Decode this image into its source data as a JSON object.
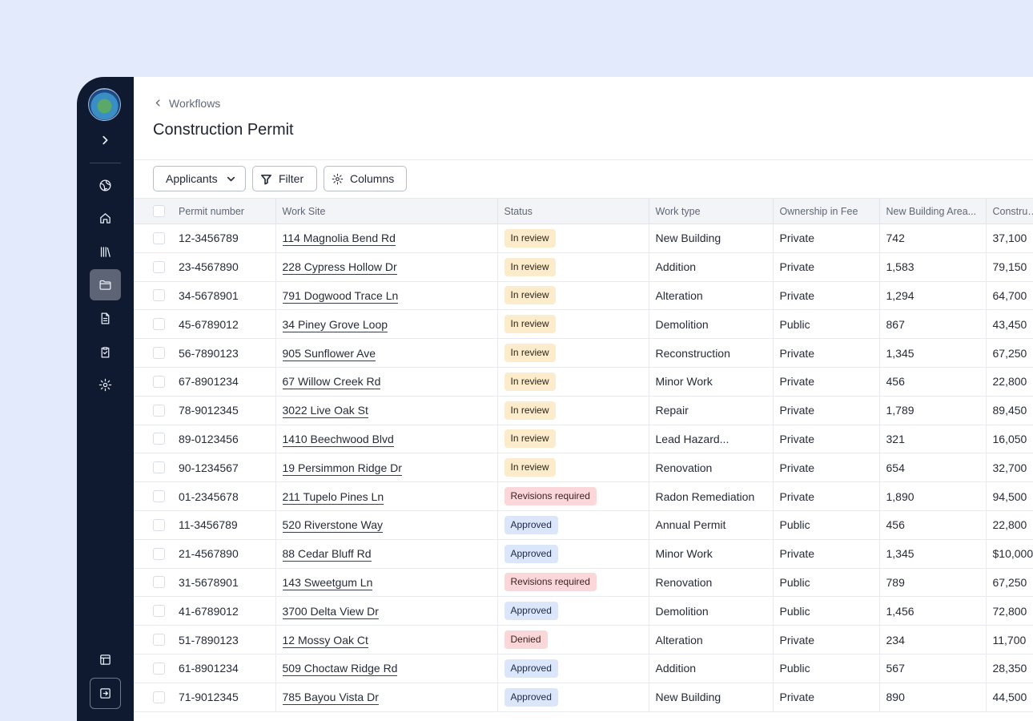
{
  "app": {
    "breadcrumb": "Workflows",
    "title": "Construction Permit"
  },
  "sidebar": {
    "icons": [
      "expand-icon",
      "globe-icon",
      "home-icon",
      "library-icon",
      "folder-icon",
      "document-icon",
      "clipboard-check-icon",
      "gear-icon",
      "layout-icon",
      "exit-icon"
    ],
    "active": "folder-icon"
  },
  "toolbar": {
    "applicants_label": "Applicants",
    "filter_label": "Filter",
    "columns_label": "Columns"
  },
  "table": {
    "headers": [
      "Permit number",
      "Work Site",
      "Status",
      "Work type",
      "Ownership in Fee",
      "New Building Area...",
      "Construction"
    ],
    "rows": [
      {
        "permit": "12-3456789",
        "site": "114 Magnolia Bend Rd",
        "status": "In review",
        "status_type": "review",
        "work": "New Building",
        "own": "Private",
        "area": "742",
        "cost": "37,100"
      },
      {
        "permit": "23-4567890",
        "site": "228 Cypress Hollow Dr",
        "status": "In review",
        "status_type": "review",
        "work": "Addition",
        "own": "Private",
        "area": "1,583",
        "cost": "79,150"
      },
      {
        "permit": "34-5678901",
        "site": "791 Dogwood Trace Ln",
        "status": "In review",
        "status_type": "review",
        "work": "Alteration",
        "own": "Private",
        "area": "1,294",
        "cost": "64,700"
      },
      {
        "permit": "45-6789012",
        "site": "34 Piney Grove Loop",
        "status": "In review",
        "status_type": "review",
        "work": "Demolition",
        "own": "Public",
        "area": "867",
        "cost": "43,450"
      },
      {
        "permit": "56-7890123",
        "site": "905 Sunflower Ave",
        "status": "In review",
        "status_type": "review",
        "work": "Reconstruction",
        "own": "Private",
        "area": "1,345",
        "cost": "67,250"
      },
      {
        "permit": "67-8901234",
        "site": "67 Willow Creek Rd",
        "status": "In review",
        "status_type": "review",
        "work": "Minor Work",
        "own": "Private",
        "area": "456",
        "cost": "22,800"
      },
      {
        "permit": "78-9012345",
        "site": "3022 Live Oak St",
        "status": "In review",
        "status_type": "review",
        "work": "Repair",
        "own": "Private",
        "area": "1,789",
        "cost": "89,450"
      },
      {
        "permit": "89-0123456",
        "site": "1410 Beechwood Blvd",
        "status": "In review",
        "status_type": "review",
        "work": "Lead Hazard...",
        "own": "Private",
        "area": "321",
        "cost": "16,050"
      },
      {
        "permit": "90-1234567",
        "site": "19 Persimmon Ridge Dr",
        "status": "In review",
        "status_type": "review",
        "work": "Renovation",
        "own": "Private",
        "area": "654",
        "cost": "32,700"
      },
      {
        "permit": "01-2345678",
        "site": "211 Tupelo Pines Ln",
        "status": "Revisions required",
        "status_type": "revisions",
        "work": "Radon Remediation",
        "own": "Private",
        "area": "1,890",
        "cost": "94,500"
      },
      {
        "permit": "11-3456789",
        "site": "520 Riverstone Way",
        "status": "Approved",
        "status_type": "approved",
        "work": "Annual Permit",
        "own": "Public",
        "area": "456",
        "cost": "22,800"
      },
      {
        "permit": "21-4567890",
        "site": "88 Cedar Bluff Rd",
        "status": "Approved",
        "status_type": "approved",
        "work": "Minor Work",
        "own": "Private",
        "area": "1,345",
        "cost": "$10,000"
      },
      {
        "permit": "31-5678901",
        "site": "143 Sweetgum Ln",
        "status": "Revisions required",
        "status_type": "revisions",
        "work": "Renovation",
        "own": "Public",
        "area": "789",
        "cost": "67,250"
      },
      {
        "permit": "41-6789012",
        "site": "3700 Delta View Dr",
        "status": "Approved",
        "status_type": "approved",
        "work": "Demolition",
        "own": "Public",
        "area": "1,456",
        "cost": "72,800"
      },
      {
        "permit": "51-7890123",
        "site": "12 Mossy Oak Ct",
        "status": "Denied",
        "status_type": "denied",
        "work": "Alteration",
        "own": "Private",
        "area": "234",
        "cost": "11,700"
      },
      {
        "permit": "61-8901234",
        "site": "509 Choctaw Ridge Rd",
        "status": "Approved",
        "status_type": "approved",
        "work": "Addition",
        "own": "Public",
        "area": "567",
        "cost": "28,350"
      },
      {
        "permit": "71-9012345",
        "site": "785 Bayou Vista Dr",
        "status": "Approved",
        "status_type": "approved",
        "work": "New Building",
        "own": "Private",
        "area": "890",
        "cost": "44,500"
      }
    ]
  }
}
